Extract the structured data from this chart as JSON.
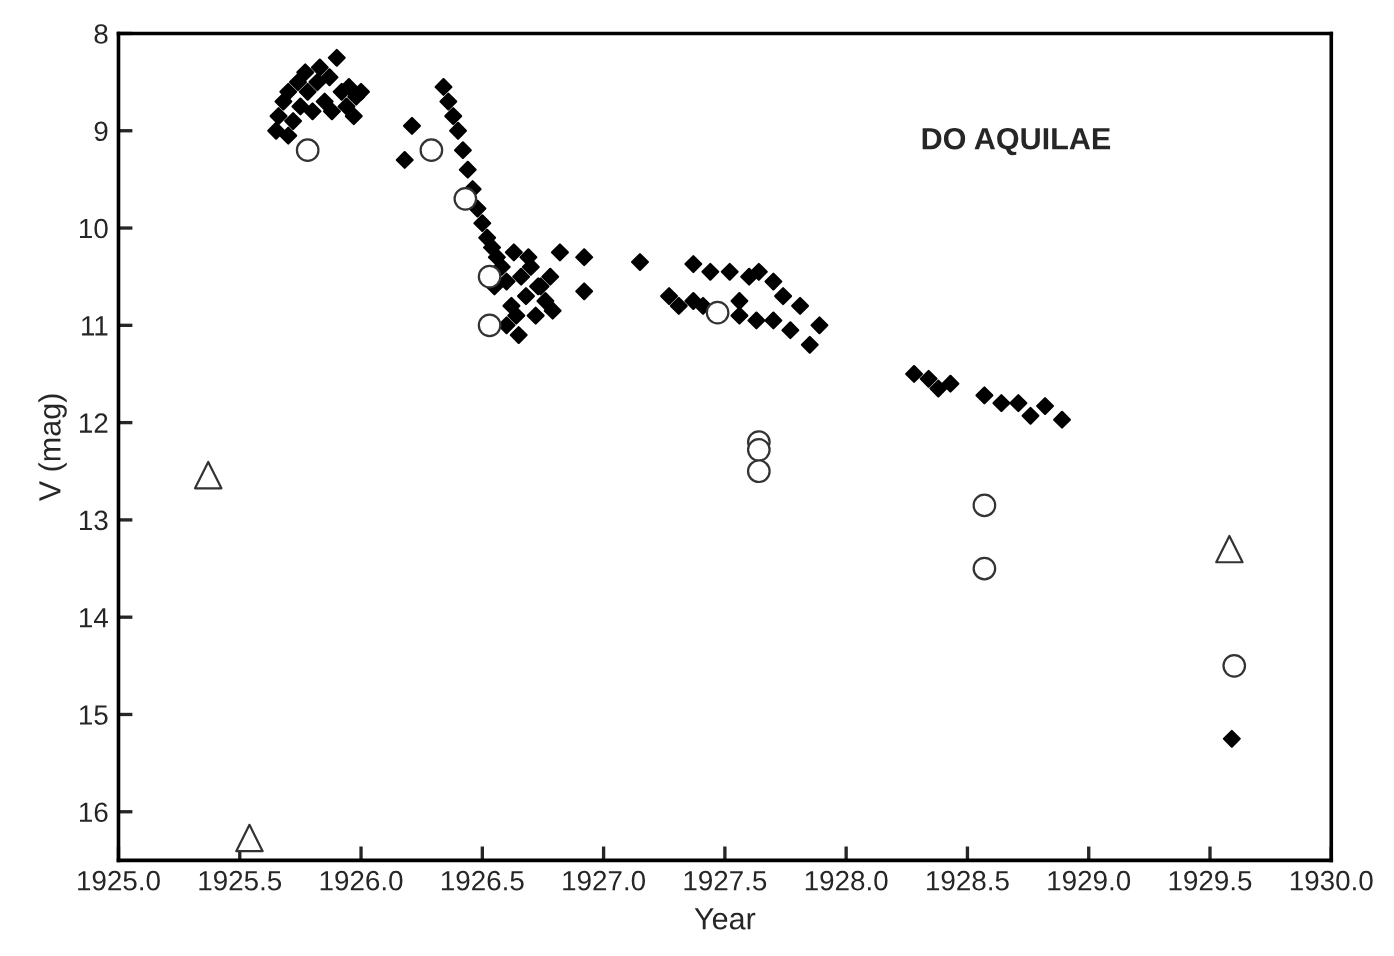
{
  "chart_data": {
    "type": "scatter",
    "title": "DO AQUILAE",
    "xlabel": "Year",
    "ylabel": "V (mag)",
    "xlim": [
      1925.0,
      1930.0
    ],
    "xticks": [
      {
        "value": 1925.0,
        "label": "1925.0"
      },
      {
        "value": 1925.5,
        "label": "1925.5"
      },
      {
        "value": 1926.0,
        "label": "1926.0"
      },
      {
        "value": 1926.5,
        "label": "1926.5"
      },
      {
        "value": 1927.0,
        "label": "1927.0"
      },
      {
        "value": 1927.5,
        "label": "1927.5"
      },
      {
        "value": 1928.0,
        "label": "1928.0"
      },
      {
        "value": 1928.5,
        "label": "1928.5"
      },
      {
        "value": 1929.0,
        "label": "1929.0"
      },
      {
        "value": 1929.5,
        "label": "1929.5"
      },
      {
        "value": 1930.0,
        "label": "1930.0"
      }
    ],
    "ylim": [
      16.5,
      8
    ],
    "yticks": [
      8,
      9,
      10,
      11,
      12,
      13,
      14,
      15,
      16
    ],
    "grid": false,
    "legend": false,
    "series": [
      {
        "color": "#000000",
        "marker": "diamond",
        "x": [
          1925.65,
          1925.66,
          1925.68,
          1925.7,
          1925.7,
          1925.72,
          1925.74,
          1925.75,
          1925.77,
          1925.78,
          1925.8,
          1925.82,
          1925.83,
          1925.85,
          1925.87,
          1925.88,
          1925.9,
          1925.92,
          1925.94,
          1925.95,
          1925.97,
          1925.98,
          1926.0,
          1926.18,
          1926.21,
          1926.34,
          1926.36,
          1926.38,
          1926.4,
          1926.42,
          1926.44,
          1926.46,
          1926.48,
          1926.5,
          1926.52,
          1926.54,
          1926.56,
          1926.58,
          1926.55,
          1926.6,
          1926.62,
          1926.64,
          1926.65,
          1926.66,
          1926.68,
          1926.7,
          1926.72,
          1926.74,
          1926.76,
          1926.78,
          1926.6,
          1926.63,
          1926.69,
          1926.73,
          1926.79,
          1926.82,
          1926.92,
          1926.92,
          1927.15,
          1927.37,
          1927.44,
          1927.52,
          1927.6,
          1927.64,
          1927.7,
          1927.74,
          1927.81,
          1927.77,
          1927.85,
          1927.89,
          1927.27,
          1927.31,
          1927.37,
          1927.41,
          1927.56,
          1927.56,
          1927.63,
          1927.7,
          1928.28,
          1928.34,
          1928.38,
          1928.43,
          1928.57,
          1928.64,
          1928.71,
          1928.76,
          1928.82,
          1928.89,
          1929.59
        ],
        "values": [
          9.0,
          8.85,
          8.7,
          8.6,
          9.05,
          8.9,
          8.5,
          8.75,
          8.4,
          8.6,
          8.8,
          8.5,
          8.35,
          8.7,
          8.45,
          8.8,
          8.25,
          8.6,
          8.75,
          8.55,
          8.85,
          8.65,
          8.6,
          9.3,
          8.95,
          8.55,
          8.7,
          8.85,
          9.0,
          9.2,
          9.4,
          9.6,
          9.8,
          9.95,
          10.1,
          10.2,
          10.3,
          10.4,
          10.6,
          10.55,
          10.8,
          10.9,
          11.1,
          10.5,
          10.7,
          10.4,
          10.9,
          10.6,
          10.75,
          10.5,
          11.0,
          10.25,
          10.3,
          10.6,
          10.85,
          10.25,
          10.3,
          10.65,
          10.35,
          10.37,
          10.45,
          10.45,
          10.5,
          10.45,
          10.55,
          10.7,
          10.8,
          11.05,
          11.2,
          11.0,
          10.7,
          10.8,
          10.75,
          10.8,
          10.75,
          10.9,
          10.95,
          10.95,
          11.5,
          11.55,
          11.65,
          11.6,
          11.72,
          11.8,
          11.8,
          11.93,
          11.83,
          11.97,
          15.25
        ]
      },
      {
        "color": "#ffffff",
        "marker": "circle",
        "x": [
          1925.78,
          1926.29,
          1926.43,
          1926.53,
          1926.53,
          1927.47,
          1927.64,
          1927.64,
          1927.64,
          1928.57,
          1928.57,
          1929.6
        ],
        "values": [
          9.2,
          9.2,
          9.7,
          10.5,
          11.0,
          10.87,
          12.2,
          12.28,
          12.5,
          12.85,
          13.5,
          14.5
        ]
      },
      {
        "color": "#ffffff",
        "marker": "triangle",
        "x": [
          1925.37,
          1925.54,
          1929.58
        ],
        "values": [
          12.54,
          16.27,
          13.3
        ]
      }
    ]
  }
}
